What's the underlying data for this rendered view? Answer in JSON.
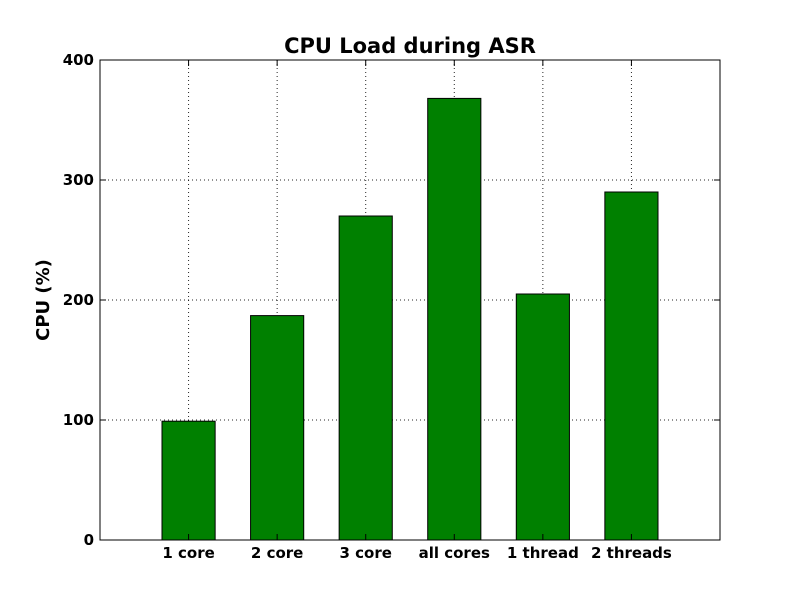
{
  "chart_data": {
    "type": "bar",
    "title": "CPU Load during ASR",
    "xlabel": "",
    "ylabel": "CPU (%)",
    "categories": [
      "1 core",
      "2 core",
      "3 core",
      "all cores",
      "1 thread",
      "2 threads"
    ],
    "values": [
      99,
      187,
      270,
      368,
      205,
      290
    ],
    "ylim": [
      0,
      400
    ],
    "yticks": [
      0,
      100,
      200,
      300,
      400
    ],
    "grid": true,
    "bar_color": "#008000"
  }
}
